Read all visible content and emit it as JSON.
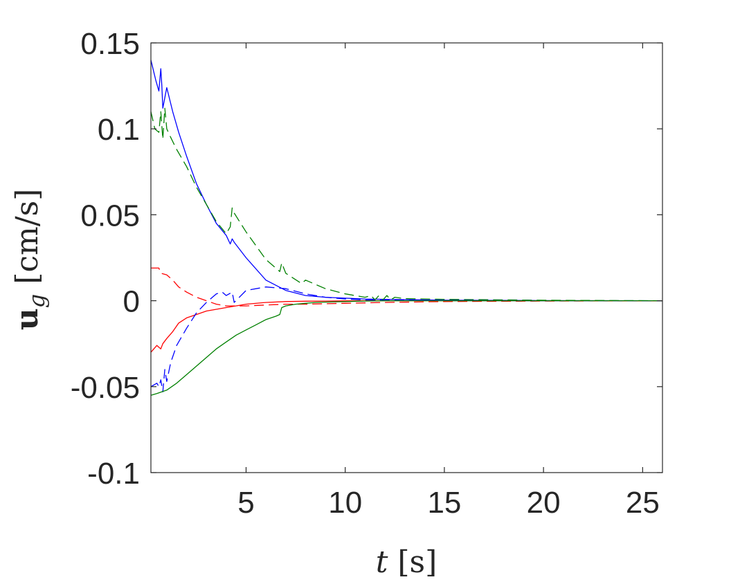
{
  "chart_data": {
    "type": "line",
    "xlabel": {
      "var": "t",
      "unit": " [s]"
    },
    "ylabel": {
      "var": "u",
      "sub": "g",
      "unit": " [cm/s]"
    },
    "xlim": [
      0.2,
      26
    ],
    "ylim": [
      -0.1,
      0.15
    ],
    "xticks": [
      5,
      10,
      15,
      20,
      25
    ],
    "xtick_labels": [
      "5",
      "10",
      "15",
      "20",
      "25"
    ],
    "yticks": [
      -0.1,
      -0.05,
      0,
      0.05,
      0.1,
      0.15
    ],
    "ytick_labels": [
      "-0.1",
      "-0.05",
      "0",
      "0.05",
      "0.1",
      "0.15"
    ],
    "grid": false,
    "series": [
      {
        "color": "#0000ff",
        "style": "solid",
        "x": [
          0.2,
          0.45,
          0.6,
          0.7,
          0.75,
          0.8,
          1.0,
          1.3,
          1.6,
          2.0,
          2.5,
          3.0,
          3.5,
          4.0,
          4.2,
          4.3,
          4.4,
          5.0,
          6.0,
          7.0,
          8.0,
          9.0,
          10.0,
          11.0,
          12.0,
          15.0,
          20.0,
          26.0
        ],
        "y": [
          0.14,
          0.128,
          0.122,
          0.135,
          0.125,
          0.112,
          0.124,
          0.11,
          0.098,
          0.084,
          0.068,
          0.056,
          0.045,
          0.038,
          0.033,
          0.036,
          0.034,
          0.025,
          0.012,
          0.006,
          0.003,
          0.002,
          0.0015,
          0.001,
          0.0008,
          0.0003,
          0.0001,
          0.0
        ]
      },
      {
        "color": "#008000",
        "style": "dashed",
        "x": [
          0.2,
          0.4,
          0.6,
          0.7,
          0.8,
          0.9,
          1.0,
          1.2,
          1.5,
          2.0,
          2.5,
          3.0,
          3.5,
          4.0,
          4.2,
          4.3,
          4.4,
          5.0,
          6.0,
          6.7,
          6.8,
          7.0,
          7.8,
          8.0,
          9.0,
          10.0,
          11.0,
          11.3,
          11.5,
          11.7,
          11.9,
          12.1,
          12.3,
          12.5,
          13.0,
          15.0,
          20.0,
          26.0
        ],
        "y": [
          0.11,
          0.1,
          0.098,
          0.11,
          0.094,
          0.112,
          0.1,
          0.095,
          0.088,
          0.078,
          0.066,
          0.056,
          0.046,
          0.039,
          0.043,
          0.054,
          0.051,
          0.04,
          0.024,
          0.017,
          0.022,
          0.016,
          0.01,
          0.012,
          0.007,
          0.004,
          0.002,
          0.003,
          0.0005,
          0.003,
          0.0005,
          0.003,
          0.0005,
          0.002,
          0.0012,
          0.0008,
          0.0003,
          0.0
        ]
      },
      {
        "color": "#ff0000",
        "style": "dashed",
        "x": [
          0.2,
          0.6,
          0.7,
          1.0,
          1.3,
          1.6,
          2.0,
          2.5,
          3.0,
          3.5,
          4.0,
          5.0,
          6.0,
          7.0,
          8.0,
          10.0,
          12.0,
          15.0,
          20.0,
          26.0
        ],
        "y": [
          0.019,
          0.019,
          0.016,
          0.015,
          0.012,
          0.008,
          0.005,
          0.002,
          0.0,
          -0.002,
          -0.003,
          -0.003,
          -0.0025,
          -0.002,
          -0.002,
          -0.0015,
          -0.001,
          -0.0005,
          -0.0002,
          0.0
        ]
      },
      {
        "color": "#ff0000",
        "style": "solid",
        "x": [
          0.2,
          0.5,
          0.7,
          0.8,
          1.0,
          1.3,
          1.6,
          2.0,
          2.5,
          3.0,
          3.5,
          4.0,
          5.0,
          6.0,
          7.0,
          8.0,
          9.0,
          10.0,
          12.0,
          15.0,
          20.0,
          26.0
        ],
        "y": [
          -0.03,
          -0.026,
          -0.028,
          -0.025,
          -0.022,
          -0.018,
          -0.013,
          -0.01,
          -0.008,
          -0.006,
          -0.005,
          -0.004,
          -0.002,
          -0.001,
          -0.0005,
          -0.0003,
          -0.0002,
          -0.0001,
          0.0,
          0.0,
          0.0,
          0.0
        ]
      },
      {
        "color": "#0000ff",
        "style": "dashed",
        "x": [
          0.2,
          0.5,
          0.6,
          0.7,
          0.8,
          0.9,
          1.0,
          1.2,
          1.5,
          2.0,
          2.5,
          3.0,
          3.5,
          3.8,
          4.0,
          4.3,
          4.4,
          5.0,
          6.0,
          7.0,
          8.0,
          9.0,
          10.0,
          11.0,
          12.0,
          15.0,
          20.0,
          26.0
        ],
        "y": [
          -0.05,
          -0.048,
          -0.05,
          -0.046,
          -0.053,
          -0.04,
          -0.047,
          -0.036,
          -0.026,
          -0.016,
          -0.007,
          -0.001,
          0.004,
          0.005,
          0.003,
          0.005,
          -0.001,
          0.006,
          0.008,
          0.007,
          0.004,
          0.002,
          0.001,
          0.0005,
          0.0003,
          0.0001,
          0.0,
          0.0
        ]
      },
      {
        "color": "#008000",
        "style": "solid",
        "x": [
          0.2,
          0.5,
          1.0,
          1.5,
          2.0,
          2.5,
          3.0,
          3.5,
          4.0,
          4.5,
          5.0,
          5.5,
          6.0,
          6.5,
          6.7,
          6.8,
          7.0,
          7.5,
          8.0,
          8.5,
          9.0,
          10.0,
          11.0,
          12.0,
          15.0,
          20.0,
          26.0
        ],
        "y": [
          -0.055,
          -0.054,
          -0.052,
          -0.048,
          -0.043,
          -0.038,
          -0.033,
          -0.028,
          -0.024,
          -0.02,
          -0.017,
          -0.014,
          -0.011,
          -0.009,
          -0.008,
          -0.004,
          -0.003,
          -0.002,
          -0.0015,
          -0.001,
          -0.0008,
          -0.0005,
          -0.0002,
          0.0,
          0.0,
          0.0,
          0.0
        ]
      }
    ]
  }
}
